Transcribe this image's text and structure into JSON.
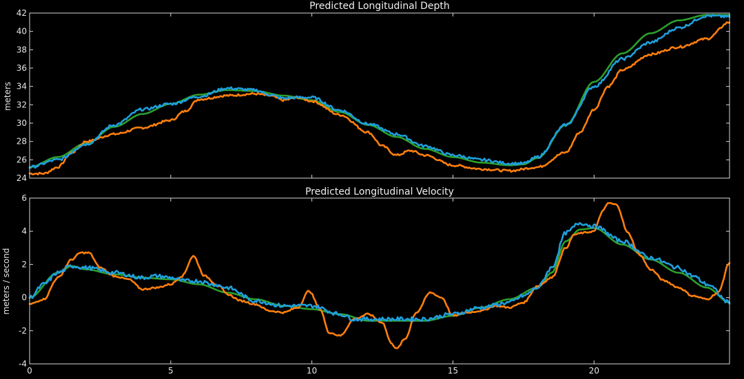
{
  "chart_data": [
    {
      "type": "line",
      "title": "Predicted Longitudinal Depth",
      "xlabel": "",
      "ylabel": "meters",
      "xlim": [
        0,
        24.8
      ],
      "ylim": [
        24,
        42
      ],
      "xticks": [
        0,
        5,
        10,
        15,
        20
      ],
      "yticks": [
        24,
        26,
        28,
        30,
        32,
        34,
        36,
        38,
        40,
        42
      ],
      "show_xtick_labels": false,
      "grid": false,
      "series": [
        {
          "color": "#2ca02c",
          "noise": 0,
          "x": [
            0,
            1,
            2,
            3,
            4,
            5,
            6,
            7,
            8,
            9,
            10,
            11,
            12,
            13,
            14,
            15,
            16,
            17,
            17.5,
            18,
            19,
            20,
            21,
            22,
            23,
            24,
            24.8
          ],
          "y": [
            25.2,
            26.3,
            27.8,
            29.6,
            31.0,
            32.1,
            33.1,
            33.6,
            33.5,
            33.0,
            32.5,
            31.2,
            29.8,
            28.5,
            27.2,
            26.3,
            25.7,
            25.4,
            25.5,
            26.2,
            29.8,
            34.5,
            37.6,
            39.8,
            41.2,
            41.8,
            41.8
          ]
        },
        {
          "color": "#ff7f0e",
          "noise": 0.12,
          "x": [
            0,
            0.5,
            1,
            1.5,
            2,
            3,
            4,
            5,
            5.5,
            6,
            7,
            8,
            8.5,
            9,
            9.5,
            10,
            11,
            12,
            12.5,
            13,
            13.5,
            14,
            15,
            16,
            17,
            18,
            19,
            19.5,
            20,
            20.5,
            21,
            22,
            23,
            24,
            24.8
          ],
          "y": [
            24.5,
            24.5,
            25.2,
            26.8,
            28.0,
            28.8,
            29.5,
            30.3,
            31.3,
            32.6,
            33.0,
            33.2,
            33.0,
            32.5,
            32.8,
            32.4,
            30.9,
            29.0,
            27.5,
            26.5,
            27.0,
            26.5,
            25.4,
            25.0,
            24.8,
            25.2,
            26.8,
            29.0,
            31.5,
            34.0,
            35.8,
            37.5,
            38.3,
            39.2,
            41.0
          ]
        },
        {
          "color": "#1f9fdb",
          "noise": 0.15,
          "x": [
            0,
            1,
            2,
            3,
            4,
            5,
            6,
            7,
            8,
            8.5,
            9,
            9.5,
            10,
            11,
            12,
            13,
            14,
            15,
            16,
            17,
            17.5,
            18,
            19,
            20,
            21,
            22,
            23,
            24,
            24.8
          ],
          "y": [
            25.2,
            26.0,
            27.7,
            29.8,
            31.5,
            32.1,
            32.9,
            33.8,
            33.6,
            33.1,
            32.7,
            32.8,
            32.8,
            31.4,
            29.9,
            28.8,
            27.5,
            26.5,
            26.0,
            25.6,
            25.6,
            26.3,
            29.8,
            34.0,
            37.0,
            38.8,
            40.4,
            41.7,
            41.6
          ]
        }
      ]
    },
    {
      "type": "line",
      "title": "Predicted Longitudinal Velocity",
      "xlabel": "",
      "ylabel": "meters / second",
      "xlim": [
        0,
        24.8
      ],
      "ylim": [
        -4,
        6
      ],
      "xticks": [
        0,
        5,
        10,
        15,
        20
      ],
      "yticks": [
        -4,
        -2,
        0,
        2,
        4,
        6
      ],
      "show_xtick_labels": true,
      "grid": false,
      "series": [
        {
          "color": "#2ca02c",
          "noise": 0,
          "x": [
            0,
            1,
            1.5,
            2,
            3,
            4,
            5,
            6,
            7,
            8,
            9,
            10,
            11,
            12,
            13,
            14,
            15,
            16,
            17,
            18,
            18.5,
            19,
            19.5,
            20,
            21,
            22,
            23,
            24,
            24.8
          ],
          "y": [
            0.0,
            1.5,
            1.9,
            1.7,
            1.4,
            1.2,
            1.1,
            0.8,
            0.3,
            -0.1,
            -0.5,
            -0.7,
            -1.0,
            -1.4,
            -1.4,
            -1.4,
            -1.1,
            -0.6,
            -0.1,
            0.6,
            1.5,
            3.4,
            4.1,
            4.2,
            3.2,
            2.3,
            1.5,
            0.6,
            -0.3
          ]
        },
        {
          "color": "#ff7f0e",
          "noise": 0.05,
          "x": [
            0,
            0.5,
            1,
            1.5,
            1.8,
            2.1,
            2.5,
            3,
            3.5,
            4,
            4.5,
            5,
            5.4,
            5.8,
            6.2,
            6.7,
            7,
            7.5,
            8,
            8.5,
            9,
            9.5,
            9.9,
            10.3,
            10.6,
            11,
            11.5,
            12,
            12.5,
            12.8,
            13.0,
            13.3,
            13.7,
            14.2,
            14.6,
            15,
            15.5,
            16,
            16.5,
            17,
            17.5,
            18,
            18.5,
            19,
            19.3,
            19.6,
            20,
            20.3,
            20.5,
            20.8,
            21.2,
            21.6,
            22,
            22.5,
            23,
            23.5,
            24,
            24.4,
            24.8
          ],
          "y": [
            -0.4,
            -0.1,
            1.2,
            2.3,
            2.7,
            2.7,
            1.8,
            1.3,
            1.1,
            0.5,
            0.6,
            0.8,
            1.3,
            2.5,
            1.3,
            0.7,
            0.2,
            -0.2,
            -0.4,
            -0.8,
            -0.9,
            -0.6,
            0.4,
            -0.7,
            -2.1,
            -2.3,
            -1.3,
            -1.0,
            -1.5,
            -2.7,
            -3.1,
            -2.5,
            -0.9,
            0.3,
            0.0,
            -1.1,
            -0.9,
            -0.8,
            -0.5,
            -0.6,
            -0.3,
            0.7,
            1.2,
            3.0,
            3.8,
            3.9,
            4.0,
            5.2,
            5.7,
            5.6,
            3.9,
            2.6,
            1.7,
            1.0,
            0.6,
            0.1,
            -0.1,
            0.3,
            2.1
          ]
        },
        {
          "color": "#1f9fdb",
          "noise": 0.12,
          "x": [
            0,
            0.5,
            1,
            1.5,
            2,
            3,
            4,
            4.5,
            5,
            5.5,
            6,
            6.5,
            7,
            8,
            9,
            10,
            11,
            11.5,
            12,
            13,
            14,
            15,
            16,
            17,
            17.5,
            18,
            18.5,
            19,
            19.5,
            20,
            21,
            22,
            23,
            23.5,
            24,
            24.8
          ],
          "y": [
            0.0,
            0.8,
            1.5,
            1.9,
            1.8,
            1.5,
            1.2,
            1.3,
            1.2,
            1.0,
            1.0,
            0.8,
            0.6,
            -0.2,
            -0.5,
            -0.5,
            -1.0,
            -1.3,
            -1.3,
            -1.3,
            -1.3,
            -1.0,
            -0.6,
            -0.3,
            0.1,
            0.6,
            1.8,
            3.9,
            4.5,
            4.3,
            3.4,
            2.4,
            1.8,
            1.3,
            0.8,
            -0.3
          ]
        }
      ]
    }
  ]
}
